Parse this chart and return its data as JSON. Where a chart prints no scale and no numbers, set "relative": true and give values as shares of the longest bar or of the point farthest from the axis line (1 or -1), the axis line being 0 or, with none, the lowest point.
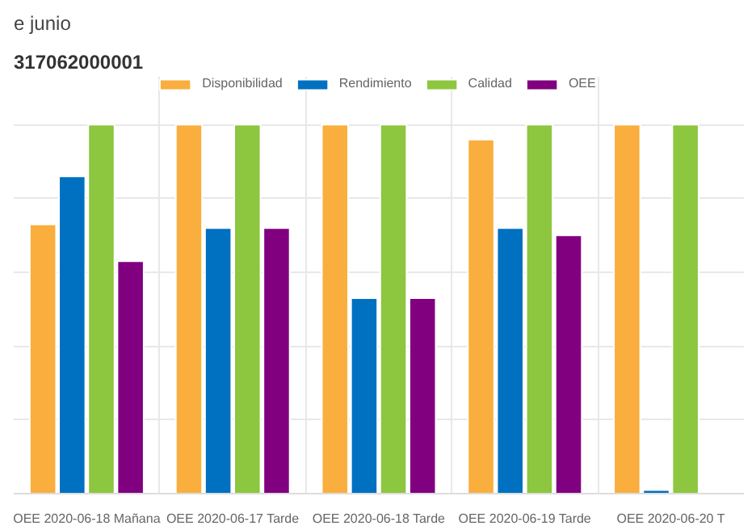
{
  "chart_data": {
    "type": "bar",
    "title": "e junio",
    "subtitle": "317062000001",
    "relative": true,
    "grid": true,
    "legend": "top",
    "categories": [
      "OEE 2020-06-18 Mañana",
      "OEE 2020-06-17 Tarde",
      "OEE 2020-06-18 Tarde",
      "OEE 2020-06-19 Tarde",
      "OEE 2020-06-20 T"
    ],
    "series": [
      {
        "name": "Disponibilidad",
        "color": "#f9ae3d",
        "values": [
          0.73,
          1,
          1,
          0.96,
          1
        ]
      },
      {
        "name": "Rendimiento",
        "color": "#0070c0",
        "values": [
          0.86,
          0.72,
          0.53,
          0.72,
          0.01
        ]
      },
      {
        "name": "Calidad",
        "color": "#8dc63f",
        "values": [
          1,
          1,
          1,
          1,
          1
        ]
      },
      {
        "name": "OEE",
        "color": "#800080",
        "values": [
          0.63,
          0.72,
          0.53,
          0.7,
          null
        ]
      }
    ]
  }
}
